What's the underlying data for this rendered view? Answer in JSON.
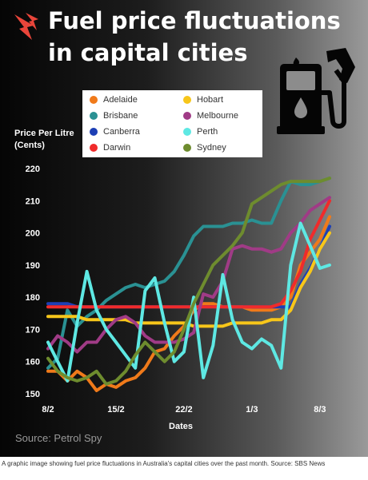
{
  "title": "Fuel price fluctuations in capital cities",
  "source": "Source: Petrol Spy",
  "caption": "A graphic image showing fuel price fluctuations in Australia's capital cities over the past month. Source: SBS News",
  "icons": {
    "logo": "sbs-logo-icon",
    "pump": "fuel-pump-icon"
  },
  "chart_data": {
    "type": "line",
    "xlabel": "Dates",
    "ylabel": "Price Per Litre (Cents)",
    "x": [
      1,
      2,
      3,
      4,
      5,
      6,
      7,
      8,
      9,
      10,
      11,
      12,
      13,
      14,
      15,
      16,
      17,
      18,
      19,
      20,
      21,
      22,
      23,
      24,
      25,
      26,
      27,
      28,
      29,
      30
    ],
    "xticks": [
      {
        "x": 1,
        "label": "8/2"
      },
      {
        "x": 8,
        "label": "15/2"
      },
      {
        "x": 15,
        "label": "22/2"
      },
      {
        "x": 22,
        "label": "1/3"
      },
      {
        "x": 29,
        "label": "8/3"
      }
    ],
    "ylim": [
      150,
      220
    ],
    "yticks": [
      150,
      160,
      170,
      180,
      190,
      200,
      210,
      220
    ],
    "legend_placement": "top",
    "series": [
      {
        "name": "Adelaide",
        "color": "#f07a1a",
        "values": [
          157,
          157,
          154,
          157,
          155,
          151,
          153,
          152,
          154,
          155,
          158,
          163,
          164,
          168,
          171,
          176,
          178,
          178,
          177,
          177,
          177,
          176,
          176,
          176,
          177,
          180,
          190,
          194,
          198,
          205
        ]
      },
      {
        "name": "Brisbane",
        "color": "#2a9193",
        "values": [
          158,
          161,
          176,
          171,
          174,
          176,
          179,
          181,
          183,
          184,
          183,
          184,
          185,
          188,
          193,
          199,
          202,
          202,
          202,
          203,
          203,
          204,
          203,
          203,
          210,
          216,
          215,
          215,
          216,
          217
        ]
      },
      {
        "name": "Canberra",
        "color": "#1d3fb5",
        "values": [
          178,
          178,
          178,
          177,
          177,
          177,
          177,
          177,
          177,
          177,
          177,
          177,
          177,
          177,
          177,
          177,
          177,
          177,
          177,
          177,
          177,
          177,
          177,
          177,
          177,
          177,
          184,
          189,
          195,
          202
        ]
      },
      {
        "name": "Darwin",
        "color": "#f02b2b",
        "values": [
          177,
          177,
          177,
          177,
          177,
          177,
          177,
          177,
          177,
          177,
          177,
          177,
          177,
          177,
          177,
          177,
          177,
          177,
          177,
          177,
          177,
          177,
          177,
          177,
          178,
          182,
          188,
          198,
          204,
          210
        ]
      },
      {
        "name": "Hobart",
        "color": "#f7c61a",
        "values": [
          174,
          174,
          174,
          174,
          173,
          173,
          173,
          173,
          173,
          172,
          172,
          172,
          172,
          172,
          172,
          171,
          171,
          171,
          171,
          172,
          172,
          172,
          172,
          173,
          173,
          176,
          183,
          188,
          195,
          200
        ]
      },
      {
        "name": "Melbourne",
        "color": "#a03b86",
        "values": [
          164,
          168,
          166,
          163,
          166,
          166,
          170,
          173,
          174,
          172,
          168,
          166,
          166,
          166,
          167,
          169,
          181,
          180,
          185,
          195,
          196,
          195,
          195,
          194,
          195,
          200,
          203,
          207,
          209,
          211
        ]
      },
      {
        "name": "Perth",
        "color": "#5ee8e3",
        "values": [
          166,
          160,
          154,
          172,
          188,
          176,
          170,
          166,
          162,
          158,
          182,
          186,
          172,
          160,
          163,
          180,
          155,
          165,
          187,
          173,
          166,
          164,
          167,
          165,
          158,
          190,
          203,
          196,
          189,
          190
        ]
      },
      {
        "name": "Sydney",
        "color": "#6e8c2e",
        "values": [
          161,
          157,
          155,
          154,
          155,
          157,
          153,
          154,
          157,
          162,
          166,
          163,
          160,
          163,
          170,
          178,
          184,
          190,
          193,
          196,
          200,
          209,
          211,
          213,
          215,
          216,
          216,
          216,
          216,
          217
        ]
      }
    ]
  }
}
